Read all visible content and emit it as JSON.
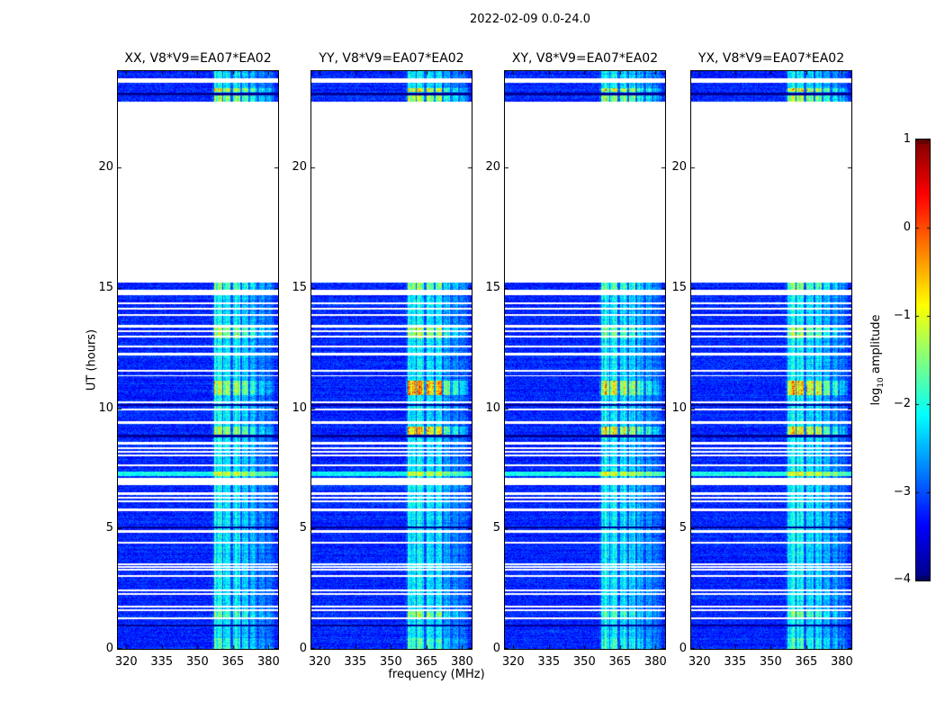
{
  "title": "2022-02-09 0.0-24.0",
  "chart_data": {
    "type": "heatmap",
    "title": "2022-02-09 0.0-24.0",
    "xlabel": "frequency (MHz)",
    "ylabel": "UT (hours)",
    "x_range": [
      316.5,
      384.0
    ],
    "x_ticks": [
      320,
      335,
      350,
      365,
      380
    ],
    "y_range": [
      0,
      24
    ],
    "y_ticks": [
      0,
      5,
      10,
      15,
      20
    ],
    "colorbar": {
      "label_prefix": "log",
      "label_sub": "10",
      "label_rest": " amplitude",
      "ticks": [
        1,
        0,
        -1,
        -2,
        -3,
        -4
      ],
      "range": [
        -4,
        1
      ],
      "colormap": "jet"
    },
    "panels": [
      {
        "label": "XX, V8*V9=EA07*EA02",
        "seed": 11,
        "hotspot_amps": [
          0.8,
          0.9,
          0.8,
          0.7,
          1.1,
          0.5,
          0.4,
          0.3
        ]
      },
      {
        "label": "YY, V8*V9=EA07*EA02",
        "seed": 22,
        "hotspot_amps": [
          0.9,
          1.8,
          1.6,
          0.9,
          1.3,
          0.7,
          0.7,
          0.4
        ]
      },
      {
        "label": "XY, V8*V9=EA07*EA02",
        "seed": 33,
        "hotspot_amps": [
          0.6,
          1.2,
          1.3,
          0.8,
          1.1,
          0.5,
          0.4,
          0.3
        ]
      },
      {
        "label": "YX, V8*V9=EA07*EA02",
        "seed": 44,
        "hotspot_amps": [
          0.8,
          1.4,
          1.3,
          0.8,
          1.2,
          0.6,
          0.5,
          0.3
        ]
      }
    ],
    "data_segments": [
      [
        0,
        15.25
      ],
      [
        22.73,
        24.0
      ]
    ],
    "hotspot_times": [
      [
        12.9,
        13.35
      ],
      [
        10.55,
        11.15
      ],
      [
        8.85,
        9.25
      ],
      [
        22.73,
        23.0
      ],
      [
        23.17,
        23.3
      ],
      [
        14.95,
        15.25
      ],
      [
        1.3,
        1.6
      ],
      [
        0.0,
        0.45
      ]
    ],
    "bright_rows": [
      [
        7.18,
        7.4
      ]
    ],
    "dark_times": [
      [
        10.12,
        10.18
      ],
      [
        8.82,
        8.9
      ],
      [
        5.04,
        5.1
      ],
      [
        0.94,
        1.02
      ],
      [
        23.0,
        23.12
      ]
    ],
    "flagged_times": [
      [
        23.55,
        23.72
      ],
      [
        14.72,
        14.95
      ],
      [
        14.32,
        14.4
      ],
      [
        14.12,
        14.2
      ],
      [
        13.86,
        13.93
      ],
      [
        13.38,
        13.46
      ],
      [
        13.16,
        13.24
      ],
      [
        12.95,
        13.02
      ],
      [
        12.55,
        12.63
      ],
      [
        12.22,
        12.3
      ],
      [
        11.52,
        11.6
      ],
      [
        11.33,
        11.4
      ],
      [
        10.22,
        10.3
      ],
      [
        9.92,
        10.0
      ],
      [
        9.38,
        9.46
      ],
      [
        8.52,
        8.6
      ],
      [
        8.33,
        8.4
      ],
      [
        8.18,
        8.25
      ],
      [
        8.03,
        8.1
      ],
      [
        7.6,
        7.7
      ],
      [
        6.83,
        7.14
      ],
      [
        6.42,
        6.52
      ],
      [
        6.25,
        6.33
      ],
      [
        6.1,
        6.17
      ],
      [
        5.75,
        5.85
      ],
      [
        4.85,
        4.95
      ],
      [
        4.38,
        4.46
      ],
      [
        3.5,
        3.58
      ],
      [
        3.4,
        3.47
      ],
      [
        3.28,
        3.36
      ],
      [
        3.02,
        3.1
      ],
      [
        2.42,
        2.5
      ],
      [
        2.28,
        2.35
      ],
      [
        1.72,
        1.82
      ],
      [
        1.58,
        1.66
      ],
      [
        1.26,
        1.34
      ]
    ],
    "rfi_columns": [
      [
        356.5,
        382.5,
        0.18
      ],
      [
        357.0,
        360.5,
        1.0
      ],
      [
        361.0,
        364.0,
        0.95
      ],
      [
        365.0,
        368.0,
        0.9
      ],
      [
        368.8,
        371.5,
        0.85
      ],
      [
        372.3,
        375.0,
        0.6
      ],
      [
        376.0,
        378.5,
        0.55
      ],
      [
        379.2,
        381.5,
        0.35
      ]
    ],
    "background_value": -3.3,
    "noise_color_hex": "#0010d0"
  }
}
